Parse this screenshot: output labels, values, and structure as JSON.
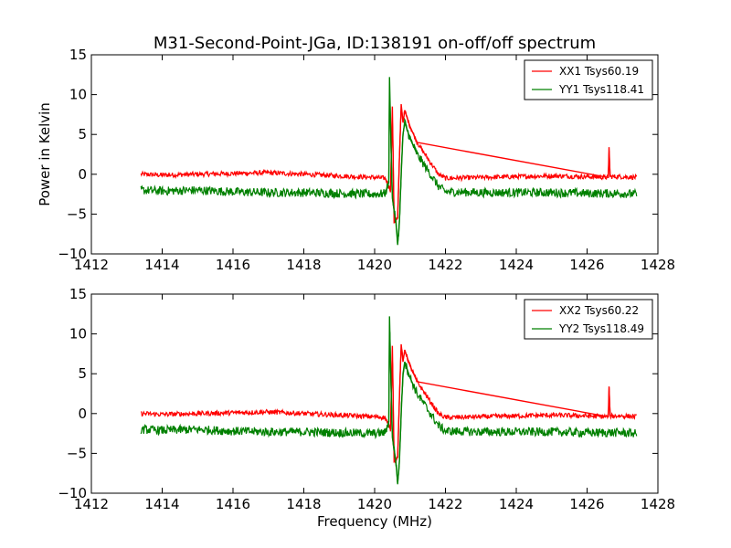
{
  "figure": {
    "title": "M31-Second-Point-JGa, ID:138191 on-off/off spectrum"
  },
  "chart_data": [
    {
      "type": "line",
      "xlabel": "",
      "ylabel": "Power in Kelvin",
      "xlim": [
        1412,
        1428
      ],
      "ylim": [
        -10,
        15
      ],
      "xticks": [
        "1412",
        "1414",
        "1416",
        "1418",
        "1420",
        "1422",
        "1424",
        "1426",
        "1428"
      ],
      "yticks": [
        "15",
        "10",
        "5",
        "0",
        "−5",
        "−10"
      ],
      "legend": "top-right",
      "x_range_data": [
        1413.4,
        1427.4
      ],
      "series": [
        {
          "name": "XX1 Tsys60.19",
          "color": "#ff0000",
          "points": [
            [
              1413.4,
              0.0
            ],
            [
              1414.0,
              -0.1
            ],
            [
              1415.0,
              0.0
            ],
            [
              1416.0,
              0.1
            ],
            [
              1417.0,
              0.2
            ],
            [
              1418.0,
              0.0
            ],
            [
              1419.0,
              -0.2
            ],
            [
              1420.0,
              -0.4
            ],
            [
              1420.3,
              -0.5
            ],
            [
              1420.45,
              -2.0
            ],
            [
              1420.5,
              8.5
            ],
            [
              1420.55,
              -6.0
            ],
            [
              1420.65,
              -5.5
            ],
            [
              1420.7,
              2.0
            ],
            [
              1420.75,
              8.8
            ],
            [
              1420.8,
              6.5
            ],
            [
              1420.85,
              8.0
            ],
            [
              1421.0,
              6.0
            ],
            [
              1421.2,
              4.0
            ],
            [
              1421.5,
              2.0
            ],
            [
              1421.8,
              0.0
            ],
            [
              1422.0,
              -0.5
            ],
            [
              1423.0,
              -0.4
            ],
            [
              1424.0,
              -0.3
            ],
            [
              1425.0,
              -0.2
            ],
            [
              1426.0,
              -0.3
            ],
            [
              1426.6,
              -0.4
            ],
            [
              1426.62,
              3.4
            ],
            [
              1426.65,
              -0.3
            ],
            [
              1427.0,
              -0.3
            ],
            [
              1427.4,
              -0.4
            ]
          ]
        },
        {
          "name": "YY1 Tsys118.41",
          "color": "#008000",
          "points": [
            [
              1413.4,
              -2.0
            ],
            [
              1414.0,
              -2.1
            ],
            [
              1415.0,
              -2.0
            ],
            [
              1416.0,
              -2.2
            ],
            [
              1417.0,
              -2.3
            ],
            [
              1418.0,
              -2.3
            ],
            [
              1419.0,
              -2.4
            ],
            [
              1420.0,
              -2.5
            ],
            [
              1420.3,
              -2.4
            ],
            [
              1420.4,
              -1.0
            ],
            [
              1420.42,
              12.2
            ],
            [
              1420.45,
              6.0
            ],
            [
              1420.5,
              -3.0
            ],
            [
              1420.6,
              -6.0
            ],
            [
              1420.65,
              -8.8
            ],
            [
              1420.7,
              -6.0
            ],
            [
              1420.75,
              0.0
            ],
            [
              1420.8,
              5.0
            ],
            [
              1420.85,
              6.5
            ],
            [
              1421.0,
              4.5
            ],
            [
              1421.2,
              2.5
            ],
            [
              1421.5,
              0.5
            ],
            [
              1421.8,
              -1.5
            ],
            [
              1422.0,
              -2.2
            ],
            [
              1423.0,
              -2.3
            ],
            [
              1424.0,
              -2.3
            ],
            [
              1425.0,
              -2.3
            ],
            [
              1426.0,
              -2.4
            ],
            [
              1427.0,
              -2.4
            ],
            [
              1427.4,
              -2.5
            ]
          ]
        }
      ]
    },
    {
      "type": "line",
      "xlabel": "Frequency (MHz)",
      "ylabel": "",
      "xlim": [
        1412,
        1428
      ],
      "ylim": [
        -10,
        15
      ],
      "xticks": [
        "1412",
        "1414",
        "1416",
        "1418",
        "1420",
        "1422",
        "1424",
        "1426",
        "1428"
      ],
      "yticks": [
        "15",
        "10",
        "5",
        "0",
        "−5",
        "−10"
      ],
      "legend": "top-right",
      "x_range_data": [
        1413.4,
        1427.4
      ],
      "series": [
        {
          "name": "XX2 Tsys60.22",
          "color": "#ff0000",
          "points": [
            [
              1413.4,
              0.0
            ],
            [
              1414.0,
              -0.1
            ],
            [
              1415.0,
              0.0
            ],
            [
              1416.0,
              0.1
            ],
            [
              1417.0,
              0.2
            ],
            [
              1418.0,
              0.0
            ],
            [
              1419.0,
              -0.2
            ],
            [
              1420.0,
              -0.4
            ],
            [
              1420.3,
              -0.5
            ],
            [
              1420.45,
              -2.0
            ],
            [
              1420.5,
              8.5
            ],
            [
              1420.55,
              -6.0
            ],
            [
              1420.65,
              -5.5
            ],
            [
              1420.7,
              2.0
            ],
            [
              1420.75,
              8.7
            ],
            [
              1420.8,
              6.5
            ],
            [
              1420.85,
              8.0
            ],
            [
              1421.0,
              6.0
            ],
            [
              1421.2,
              4.0
            ],
            [
              1421.5,
              2.0
            ],
            [
              1421.8,
              0.0
            ],
            [
              1422.0,
              -0.5
            ],
            [
              1423.0,
              -0.4
            ],
            [
              1424.0,
              -0.3
            ],
            [
              1425.0,
              -0.2
            ],
            [
              1426.0,
              -0.3
            ],
            [
              1426.6,
              -0.4
            ],
            [
              1426.62,
              3.4
            ],
            [
              1426.65,
              -0.3
            ],
            [
              1427.0,
              -0.3
            ],
            [
              1427.4,
              -0.4
            ]
          ]
        },
        {
          "name": "YY2 Tsys118.49",
          "color": "#008000",
          "points": [
            [
              1413.4,
              -2.0
            ],
            [
              1414.0,
              -2.1
            ],
            [
              1415.0,
              -2.0
            ],
            [
              1416.0,
              -2.2
            ],
            [
              1417.0,
              -2.3
            ],
            [
              1418.0,
              -2.3
            ],
            [
              1419.0,
              -2.4
            ],
            [
              1420.0,
              -2.5
            ],
            [
              1420.3,
              -2.4
            ],
            [
              1420.4,
              -1.0
            ],
            [
              1420.42,
              12.2
            ],
            [
              1420.45,
              6.0
            ],
            [
              1420.5,
              -3.0
            ],
            [
              1420.6,
              -6.0
            ],
            [
              1420.65,
              -8.8
            ],
            [
              1420.7,
              -6.0
            ],
            [
              1420.75,
              0.0
            ],
            [
              1420.8,
              5.0
            ],
            [
              1420.85,
              6.5
            ],
            [
              1421.0,
              4.5
            ],
            [
              1421.2,
              2.5
            ],
            [
              1421.5,
              0.5
            ],
            [
              1421.8,
              -1.5
            ],
            [
              1422.0,
              -2.2
            ],
            [
              1423.0,
              -2.3
            ],
            [
              1424.0,
              -2.3
            ],
            [
              1425.0,
              -2.3
            ],
            [
              1426.0,
              -2.4
            ],
            [
              1427.0,
              -2.4
            ],
            [
              1427.4,
              -2.5
            ]
          ]
        }
      ]
    }
  ]
}
